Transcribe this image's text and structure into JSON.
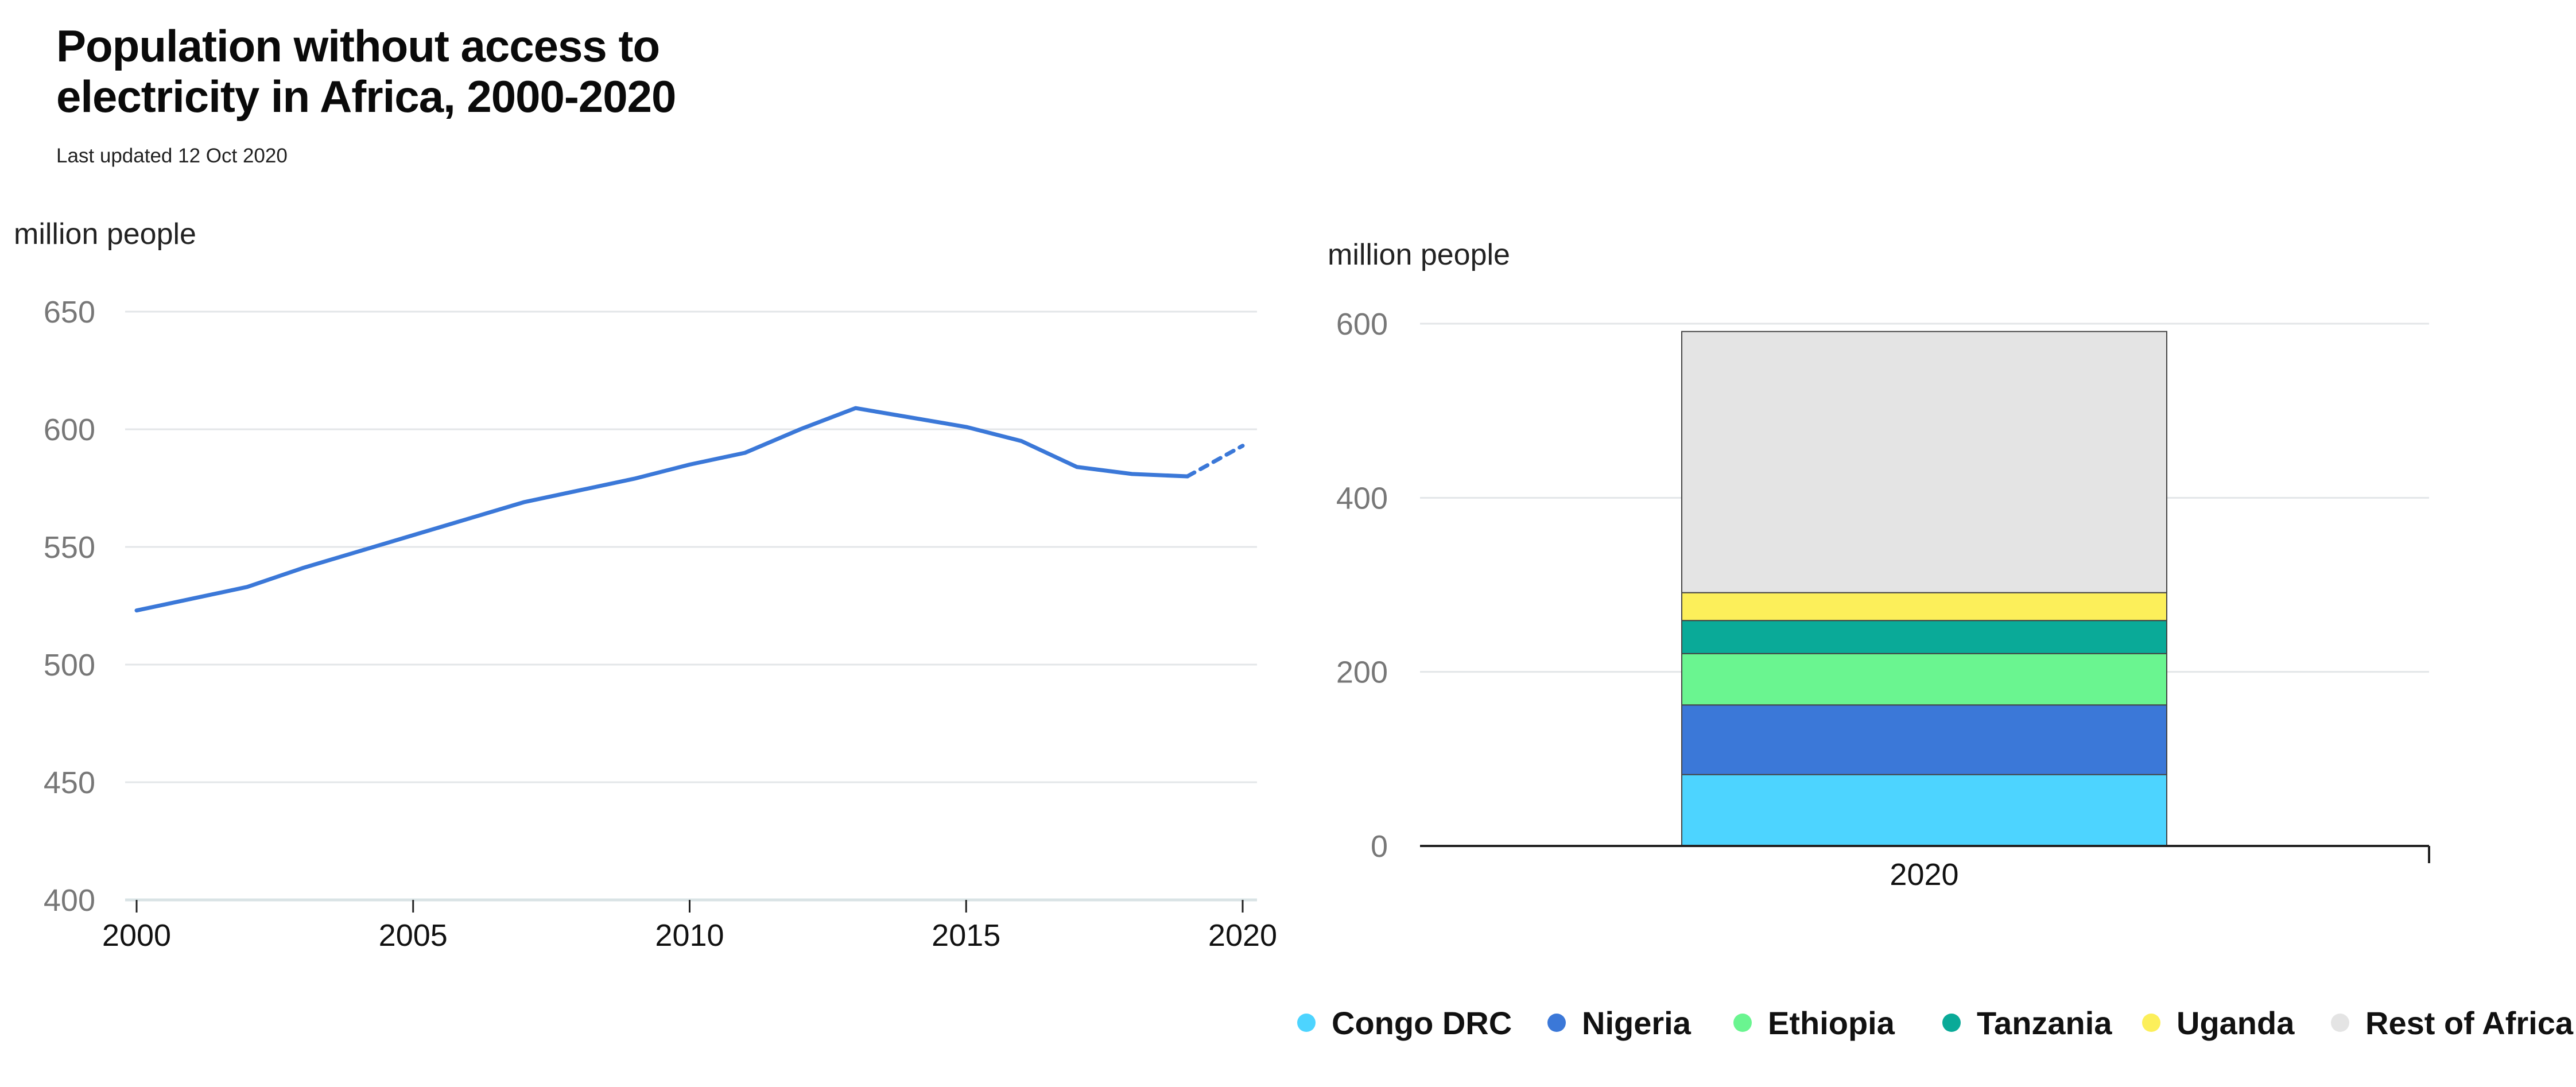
{
  "title": "Population without access to electricity in Africa, 2000-2020",
  "subtitle": "Last updated 12 Oct 2020",
  "chart_data": [
    {
      "type": "line",
      "ylabel": "million people",
      "ylim": [
        400,
        650
      ],
      "yticks": [
        400,
        450,
        500,
        550,
        600,
        650
      ],
      "xticks": [
        2000,
        2005,
        2010,
        2015,
        2020
      ],
      "grid": true,
      "series": [
        {
          "color": "#3b78d8",
          "x": [
            2000,
            2001,
            2002,
            2003,
            2004,
            2005,
            2006,
            2007,
            2008,
            2009,
            2010,
            2011,
            2012,
            2013,
            2014,
            2015,
            2016,
            2017,
            2018,
            2019
          ],
          "values": [
            523,
            528,
            533,
            541,
            548,
            555,
            562,
            569,
            574,
            579,
            585,
            590,
            600,
            609,
            605,
            601,
            595,
            584,
            581,
            580
          ],
          "style": "solid"
        },
        {
          "color": "#3b78d8",
          "x": [
            2019,
            2020
          ],
          "values": [
            580,
            593
          ],
          "style": "dashed"
        }
      ]
    },
    {
      "type": "bar",
      "stacked": true,
      "ylabel": "million people",
      "ylim": [
        0,
        600
      ],
      "yticks": [
        0,
        200,
        400,
        600
      ],
      "categories": [
        "2020"
      ],
      "grid": true,
      "legend_position": "bottom",
      "series": [
        {
          "name": "Congo DRC",
          "color": "#4dd4ff",
          "values": [
            82
          ]
        },
        {
          "name": "Nigeria",
          "color": "#3b78d8",
          "values": [
            80
          ]
        },
        {
          "name": "Ethiopia",
          "color": "#6af590",
          "values": [
            59
          ]
        },
        {
          "name": "Tanzania",
          "color": "#0aaa98",
          "values": [
            38
          ]
        },
        {
          "name": "Uganda",
          "color": "#fcef5a",
          "values": [
            32
          ]
        },
        {
          "name": "Rest of Africa",
          "color": "#e4e4e4",
          "values": [
            300
          ]
        }
      ]
    }
  ]
}
